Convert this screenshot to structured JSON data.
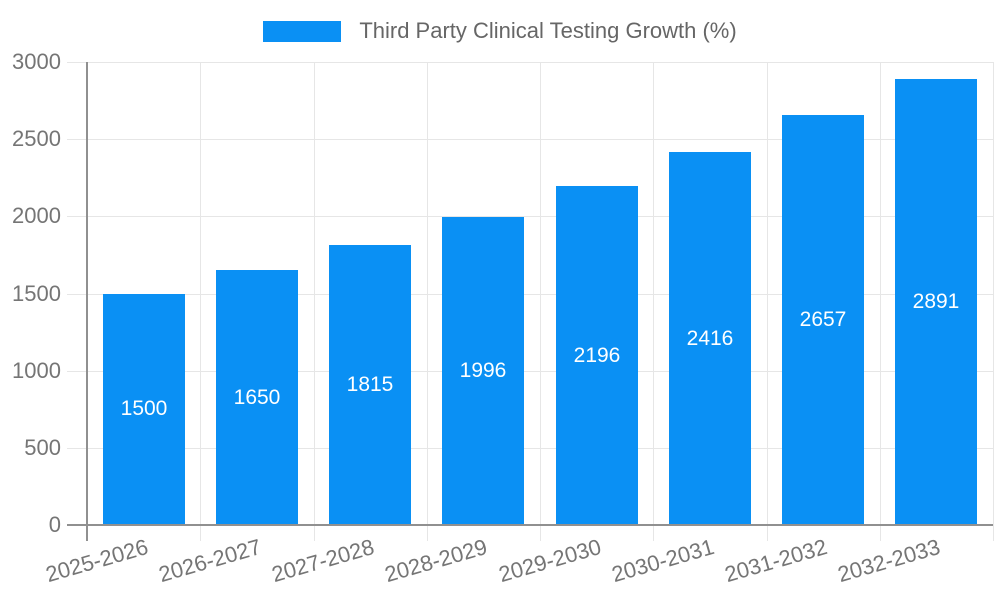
{
  "legend": {
    "label": "Third Party Clinical Testing Growth (%)"
  },
  "chart_data": {
    "type": "bar",
    "title": "Third Party Clinical Testing Growth (%)",
    "categories": [
      "2025-2026",
      "2026-2027",
      "2027-2028",
      "2028-2029",
      "2029-2030",
      "2030-2031",
      "2031-2032",
      "2032-2033"
    ],
    "values": [
      1500,
      1650,
      1815,
      1996,
      2196,
      2416,
      2657,
      2891
    ],
    "xlabel": "",
    "ylabel": "",
    "ylim": [
      0,
      3000
    ],
    "yticks": [
      0,
      500,
      1000,
      1500,
      2000,
      2500,
      3000
    ],
    "grid": true,
    "legend_position": "top-center",
    "bar_value_labels_inside": true
  },
  "colors": {
    "bar": "#0a90f4",
    "grid": "#e6e6e6",
    "axis": "#909090",
    "tick_text": "#757575",
    "legend_text": "#666666",
    "bar_label_text": "#ffffff",
    "background": "#ffffff"
  }
}
